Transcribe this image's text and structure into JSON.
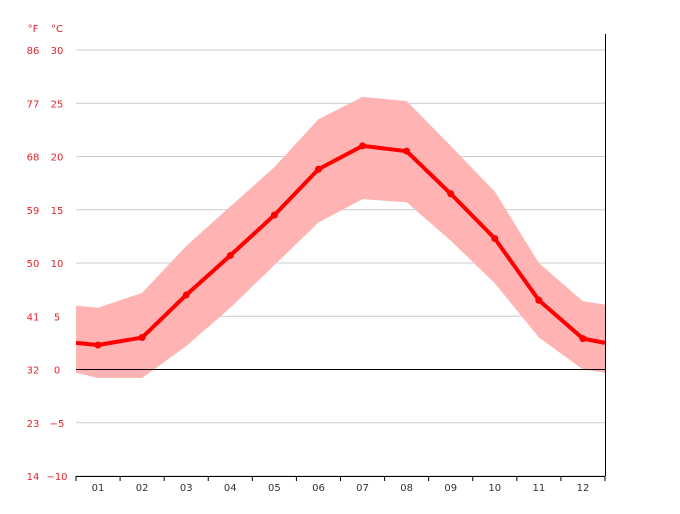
{
  "chart_data": {
    "type": "line",
    "units": {
      "fahrenheit": "°F",
      "celsius": "°C"
    },
    "y_ticks_celsius": [
      "30",
      "25",
      "20",
      "15",
      "10",
      "5",
      "0",
      "−5",
      "−10"
    ],
    "y_ticks_fahrenheit": [
      "86",
      "77",
      "68",
      "59",
      "50",
      "41",
      "32",
      "23",
      "14"
    ],
    "ylim": [
      -10,
      30
    ],
    "categories": [
      "01",
      "02",
      "03",
      "04",
      "05",
      "06",
      "07",
      "08",
      "09",
      "10",
      "11",
      "12"
    ],
    "series": [
      {
        "values": [
          2.3,
          3.0,
          7.0,
          10.7,
          14.5,
          18.8,
          21.0,
          20.5,
          16.5,
          12.3,
          6.5,
          2.9
        ]
      }
    ],
    "band": {
      "upper": [
        5.8,
        7.2,
        11.6,
        15.3,
        19.0,
        23.5,
        25.6,
        25.2,
        21.0,
        16.7,
        10.0,
        6.4
      ],
      "lower": [
        -0.8,
        -0.8,
        2.2,
        5.8,
        9.8,
        13.8,
        16.0,
        15.7,
        12.1,
        8.1,
        3.0,
        0.0
      ]
    },
    "edge_values": {
      "line": {
        "start": 2.5,
        "end": 2.5
      },
      "upper": {
        "start": 6.0,
        "end": 6.1
      },
      "lower": {
        "start": -0.3,
        "end": -0.3
      }
    },
    "colors": {
      "line": "#ff0000",
      "band": "#ffb3b3",
      "label": "#e4232a",
      "grid": "#cccccc",
      "zero_line": "#000000",
      "axis": "#000000"
    },
    "grid": true
  }
}
